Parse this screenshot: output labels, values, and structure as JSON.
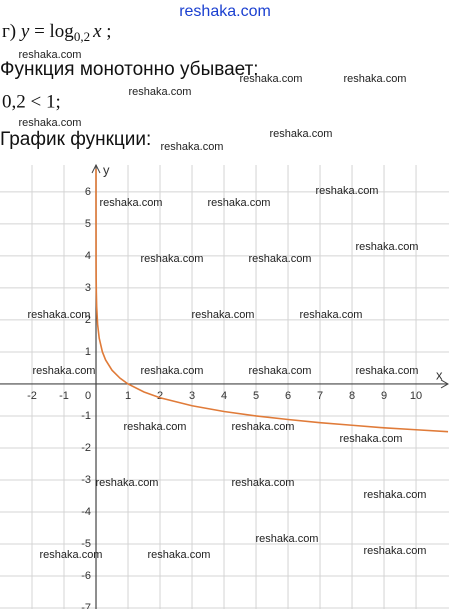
{
  "document": {
    "site": "reshaka.com",
    "formula": {
      "prefix": "г)",
      "lhs": "y",
      "eq": "=",
      "func": "log",
      "base": "0,2",
      "arg": "x",
      "end": ";"
    },
    "line2": "Функция монотонно убывает:",
    "line3": "0,2 < 1;",
    "line4": "График функции:",
    "watermarks": [
      "reshaka.com",
      "reshaka.com",
      "reshaka.com",
      "reshaka.com",
      "reshaka.com",
      "reshaka.com",
      "reshaka.com",
      "reshaka.com",
      "reshaka.com",
      "reshaka.com",
      "reshaka.com",
      "reshaka.com",
      "reshaka.com",
      "reshaka.com",
      "reshaka.com",
      "reshaka.com",
      "reshaka.com",
      "reshaka.com",
      "reshaka.com",
      "reshaka.com",
      "reshaka.com",
      "reshaka.com",
      "reshaka.com",
      "reshaka.com",
      "reshaka.com",
      "reshaka.com",
      "reshaka.com",
      "reshaka.com",
      "reshaka.com",
      "reshaka.com"
    ]
  },
  "chart_data": {
    "type": "line",
    "x_label": "x",
    "y_label": "y",
    "xlim": [
      -3,
      11.03
    ],
    "ylim": [
      -7.03,
      6.84
    ],
    "xticks": [
      -2,
      -1,
      0,
      1,
      2,
      3,
      4,
      5,
      6,
      7,
      8,
      9,
      10
    ],
    "yticks": [
      -7,
      -6,
      -5,
      -4,
      -3,
      -2,
      -1,
      1,
      2,
      3,
      4,
      5,
      6
    ],
    "grid": true,
    "series": [
      {
        "color": "#e07b39",
        "x": [
          2e-05,
          0.0001,
          0.002,
          0.005,
          0.01,
          0.02,
          0.05,
          0.1,
          0.2,
          0.3,
          0.5,
          0.75,
          1,
          1.5,
          2,
          3,
          4,
          5,
          6,
          7,
          8,
          9,
          10,
          11
        ],
        "values": [
          6.72,
          5.72,
          3.86,
          3.29,
          2.86,
          2.43,
          1.86,
          1.43,
          1,
          0.75,
          0.43,
          0.18,
          0,
          -0.25,
          -0.43,
          -0.68,
          -0.86,
          -1,
          -1.11,
          -1.21,
          -1.29,
          -1.37,
          -1.43,
          -1.49
        ]
      }
    ]
  }
}
